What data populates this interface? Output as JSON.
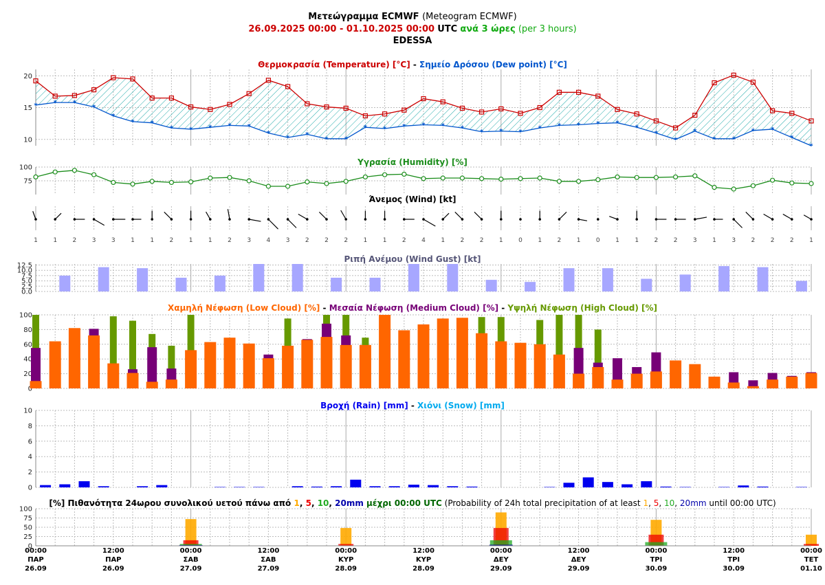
{
  "header": {
    "title_bold": "Μετεώγραμμα ECMWF",
    "title_rest": "(Meteogram ECMWF)",
    "date_range": "26.09.2025 00:00 - 01.10.2025 00:00",
    "utc": "UTC",
    "step_gr": "ανά 3 ώρες",
    "step_en": "(per 3 hours)",
    "location": "EDESSA"
  },
  "colors": {
    "temperature": "#cc0000",
    "dew_point": "#0055cc",
    "humidity": "#1a8c1a",
    "wind": "#000000",
    "gust": "#a7a7ff",
    "low_cloud": "#ff6600",
    "medium_cloud": "#770077",
    "high_cloud": "#669900",
    "rain": "#0000ee",
    "snow": "#00aaee",
    "prob1": "#ffaa00",
    "prob5": "#ee0000",
    "prob10": "#22aa22",
    "prob20": "#0000aa"
  },
  "time_axis": [
    {
      "time": "00:00",
      "day": "ΠΑΡ",
      "date": "26.09"
    },
    {
      "time": "12:00",
      "day": "ΠΑΡ",
      "date": "26.09"
    },
    {
      "time": "00:00",
      "day": "ΣΑΒ",
      "date": "27.09"
    },
    {
      "time": "12:00",
      "day": "ΣΑΒ",
      "date": "27.09"
    },
    {
      "time": "00:00",
      "day": "ΚΥΡ",
      "date": "28.09"
    },
    {
      "time": "12:00",
      "day": "ΚΥΡ",
      "date": "28.09"
    },
    {
      "time": "00:00",
      "day": "ΔΕΥ",
      "date": "29.09"
    },
    {
      "time": "12:00",
      "day": "ΔΕΥ",
      "date": "29.09"
    },
    {
      "time": "00:00",
      "day": "ΤΡΙ",
      "date": "30.09"
    },
    {
      "time": "12:00",
      "day": "ΤΡΙ",
      "date": "30.09"
    },
    {
      "time": "00:00",
      "day": "ΤΕΤ",
      "date": "01.10"
    }
  ],
  "chart_data": [
    {
      "type": "line",
      "title_parts": [
        "Θερμοκρασία (Temperature) [°C]",
        " - ",
        "Σημείο Δρόσου (Dew point) [°C]"
      ],
      "y_ticks": [
        10,
        15,
        20
      ],
      "ylim": [
        9,
        21
      ],
      "series": [
        {
          "name": "Θερμοκρασία (Temperature) [°C]",
          "values": [
            19.2,
            16.8,
            16.9,
            17.8,
            19.7,
            19.5,
            16.5,
            16.5,
            15.1,
            14.7,
            15.5,
            17.2,
            19.3,
            18.3,
            15.6,
            15.1,
            14.9,
            13.7,
            14.0,
            14.6,
            16.4,
            15.9,
            14.9,
            14.3,
            14.8,
            14.1,
            15.0,
            17.4,
            17.4,
            16.8,
            14.7,
            14.0,
            12.9,
            11.8,
            13.8,
            18.9,
            20.1,
            19.0,
            14.5,
            14.1,
            12.9
          ]
        },
        {
          "name": "Σημείο Δρόσου (Dew point) [°C]",
          "values": [
            15.4,
            15.8,
            15.8,
            15.1,
            13.7,
            12.8,
            12.6,
            11.8,
            11.6,
            11.9,
            12.2,
            12.1,
            11.0,
            10.3,
            10.8,
            10.1,
            10.1,
            11.9,
            11.7,
            12.1,
            12.3,
            12.2,
            11.8,
            11.2,
            11.3,
            11.2,
            11.8,
            12.2,
            12.3,
            12.5,
            12.6,
            11.9,
            11.0,
            10.0,
            11.3,
            10.1,
            10.1,
            11.4,
            11.6,
            10.3,
            9.0
          ]
        }
      ]
    },
    {
      "type": "line",
      "title": "Υγρασία (Humidity) [%]",
      "y_ticks": [
        75,
        100
      ],
      "ylim": [
        50,
        100
      ],
      "series": [
        {
          "name": "Υγρασία (Humidity) [%]",
          "values": [
            82,
            91,
            94,
            86,
            72,
            69,
            74,
            72,
            73,
            80,
            81,
            75,
            65,
            65,
            73,
            70,
            74,
            82,
            86,
            87,
            79,
            80,
            80,
            79,
            78,
            79,
            80,
            74,
            74,
            77,
            82,
            81,
            81,
            82,
            84,
            63,
            60,
            66,
            76,
            71,
            70
          ]
        }
      ]
    },
    {
      "type": "wind",
      "title": "Άνεμος (Wind) [kt]",
      "speeds": [
        1,
        1,
        2,
        3,
        3,
        1,
        1,
        2,
        1,
        1,
        2,
        3,
        4,
        3,
        2,
        2,
        2,
        1,
        1,
        2,
        4,
        1,
        2,
        2,
        1,
        0,
        1,
        2,
        1,
        0,
        1,
        1,
        2,
        2,
        3,
        1,
        3,
        2,
        2,
        2,
        1
      ],
      "directions_deg": [
        340,
        45,
        90,
        120,
        90,
        90,
        0,
        315,
        0,
        330,
        350,
        100,
        135,
        135,
        300,
        315,
        330,
        0,
        0,
        90,
        120,
        45,
        315,
        315,
        0,
        0,
        0,
        45,
        100,
        0,
        290,
        0,
        90,
        90,
        80,
        90,
        135,
        315,
        300,
        300,
        300
      ]
    },
    {
      "type": "bar",
      "title": "Ριπή Ανέμου (Wind Gust) [kt]",
      "y_ticks": [
        0,
        2.5,
        5,
        7.5,
        10,
        12.5
      ],
      "ylim": [
        0,
        13
      ],
      "values": [
        null,
        7.5,
        null,
        11.5,
        null,
        11,
        null,
        6.5,
        null,
        7.5,
        null,
        13.5,
        null,
        13,
        null,
        6.5,
        null,
        6.5,
        null,
        13,
        null,
        13,
        null,
        5.5,
        null,
        4.5,
        null,
        11,
        null,
        11,
        null,
        6,
        null,
        8,
        null,
        12,
        null,
        11.5,
        null,
        5
      ]
    },
    {
      "type": "bar",
      "title_parts": [
        "Χαμηλή Νέφωση (Low Cloud) [%]",
        " - ",
        "Μεσαία Νέφωση (Medium Cloud) [%]",
        " - ",
        "Υψηλή Νέφωση (High Cloud) [%]"
      ],
      "y_ticks": [
        0,
        20,
        40,
        60,
        80,
        100
      ],
      "ylim": [
        0,
        100
      ],
      "series": [
        {
          "name": "Χαμηλή Νέφωση (Low Cloud) [%]",
          "values": [
            10,
            64,
            82,
            72,
            34,
            21,
            9,
            12,
            52,
            63,
            69,
            61,
            41,
            58,
            66,
            70,
            59,
            59,
            100,
            79,
            87,
            95,
            96,
            75,
            64,
            62,
            60,
            46,
            20,
            29,
            12,
            20,
            23,
            38,
            33,
            16,
            8,
            3,
            12,
            16,
            21
          ]
        },
        {
          "name": "Μεσαία Νέφωση (Medium Cloud) [%]",
          "values": [
            55,
            0,
            0,
            81,
            0,
            26,
            56,
            27,
            0,
            0,
            0,
            0,
            46,
            0,
            67,
            88,
            72,
            0,
            0,
            0,
            0,
            0,
            0,
            0,
            0,
            0,
            0,
            0,
            55,
            35,
            41,
            29,
            49,
            0,
            0,
            0,
            22,
            11,
            21,
            17,
            22
          ]
        },
        {
          "name": "Υψηλή Νέφωση (High Cloud) [%]",
          "values": [
            100,
            0,
            0,
            0,
            98,
            92,
            74,
            58,
            100,
            0,
            0,
            0,
            0,
            95,
            0,
            100,
            100,
            69,
            0,
            0,
            0,
            0,
            0,
            97,
            97,
            0,
            93,
            100,
            100,
            80,
            0,
            0,
            0,
            0,
            0,
            0,
            0,
            0,
            0,
            0,
            0
          ]
        }
      ]
    },
    {
      "type": "bar",
      "title_parts": [
        "Βροχή (Rain) [mm]",
        " - ",
        "Χιόνι (Snow) [mm]"
      ],
      "y_ticks": [
        0,
        2,
        4,
        6,
        8,
        10
      ],
      "ylim": [
        0,
        10
      ],
      "series": [
        {
          "name": "Βροχή (Rain) [mm]",
          "values": [
            0.3,
            0.4,
            0.8,
            0.15,
            0,
            0.15,
            0.3,
            0,
            0,
            0.05,
            0.05,
            0.05,
            0,
            0.15,
            0.1,
            0.15,
            1.0,
            0.15,
            0.15,
            0.35,
            0.3,
            0.15,
            0.1,
            0,
            0,
            0,
            0.05,
            0.6,
            1.3,
            0.7,
            0.4,
            0.8,
            0.1,
            0.05,
            0,
            0.05,
            0.25,
            0.1,
            0,
            0.05
          ]
        },
        {
          "name": "Χιόνι (Snow) [mm]",
          "values": []
        }
      ]
    },
    {
      "type": "bar",
      "title_parts": [
        "[%] Πιθανότητα 24ωρου συνολικού υετού πάνω από ",
        "1",
        ", ",
        "5",
        ", ",
        "10",
        ", ",
        "20mm",
        " μέχρι 00:00 UTC",
        " (Probability of 24h total precipitation of at least ",
        "1",
        ", ",
        "5",
        ", ",
        "10",
        ", ",
        "20mm",
        " until 00:00 UTC)"
      ],
      "y_ticks": [
        0,
        25,
        50,
        75,
        100
      ],
      "ylim": [
        0,
        100
      ],
      "categories": [
        "27.09",
        "28.09",
        "29.09",
        "30.09",
        "01.10"
      ],
      "series": [
        {
          "name": "1",
          "values": [
            72,
            48,
            90,
            70,
            30
          ]
        },
        {
          "name": "5",
          "values": [
            15,
            5,
            48,
            30,
            5
          ]
        },
        {
          "name": "10",
          "values": [
            5,
            0,
            15,
            10,
            0
          ]
        },
        {
          "name": "20mm",
          "values": [
            2,
            0,
            3,
            1,
            0
          ]
        }
      ]
    }
  ]
}
